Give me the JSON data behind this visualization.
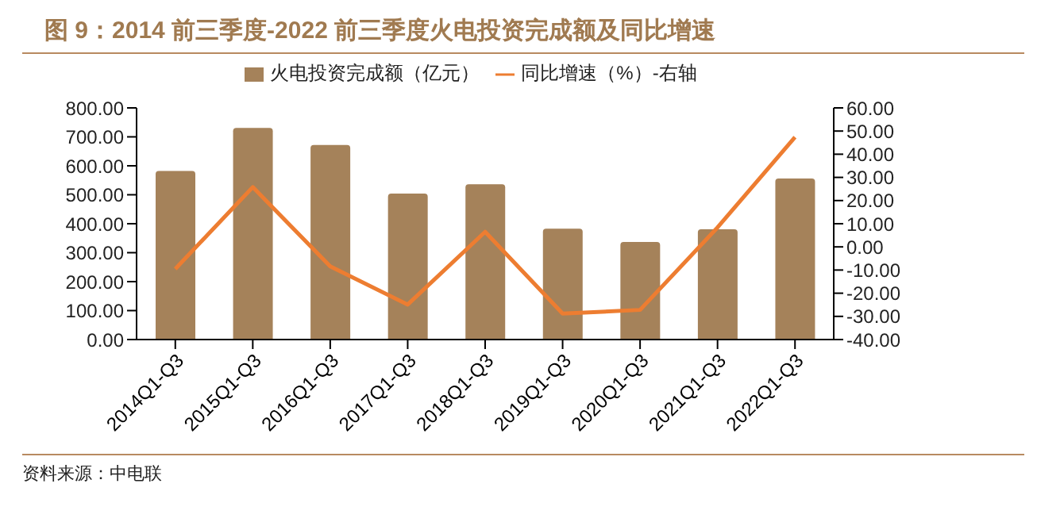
{
  "chart_data": {
    "type": "bar",
    "title": "图 9：2014 前三季度-2022 前三季度火电投资完成额及同比增速",
    "annotations": [
      "资料来源：中电联"
    ],
    "categories": [
      "2014Q1-Q3",
      "2015Q1-Q3",
      "2016Q1-Q3",
      "2017Q1-Q3",
      "2018Q1-Q3",
      "2019Q1-Q3",
      "2020Q1-Q3",
      "2021Q1-Q3",
      "2022Q1-Q3"
    ],
    "series": [
      {
        "name": "火电投资完成额（亿元）",
        "color": "#a5825a",
        "values": [
          582,
          731,
          672,
          504,
          536,
          383,
          337,
          381,
          556
        ]
      },
      {
        "name": "同比增速（%）-右轴",
        "type": "line",
        "axis": "y2",
        "color": "#ed7d31",
        "values": [
          -9.5,
          25.8,
          -8.4,
          -24.9,
          6.5,
          -28.8,
          -27.2,
          8.4,
          47.4
        ]
      }
    ],
    "ylim": [
      0,
      800
    ],
    "yticks": [
      {
        "value": 0,
        "label": "0.00"
      },
      {
        "value": 100,
        "label": "100.00"
      },
      {
        "value": 200,
        "label": "200.00"
      },
      {
        "value": 300,
        "label": "300.00"
      },
      {
        "value": 400,
        "label": "400.00"
      },
      {
        "value": 500,
        "label": "500.00"
      },
      {
        "value": 600,
        "label": "600.00"
      },
      {
        "value": 700,
        "label": "700.00"
      },
      {
        "value": 800,
        "label": "800.00"
      }
    ],
    "y2lim": [
      -40,
      60
    ],
    "y2ticks": [
      {
        "value": -40,
        "label": "-40.00"
      },
      {
        "value": -30,
        "label": "-30.00"
      },
      {
        "value": -20,
        "label": "-20.00"
      },
      {
        "value": -10,
        "label": "-10.00"
      },
      {
        "value": 0,
        "label": "0.00"
      },
      {
        "value": 10,
        "label": "10.00"
      },
      {
        "value": 20,
        "label": "20.00"
      },
      {
        "value": 30,
        "label": "30.00"
      },
      {
        "value": 40,
        "label": "40.00"
      },
      {
        "value": 50,
        "label": "50.00"
      },
      {
        "value": 60,
        "label": "60.00"
      }
    ],
    "legend": "top",
    "grid": false,
    "marker": "none"
  }
}
